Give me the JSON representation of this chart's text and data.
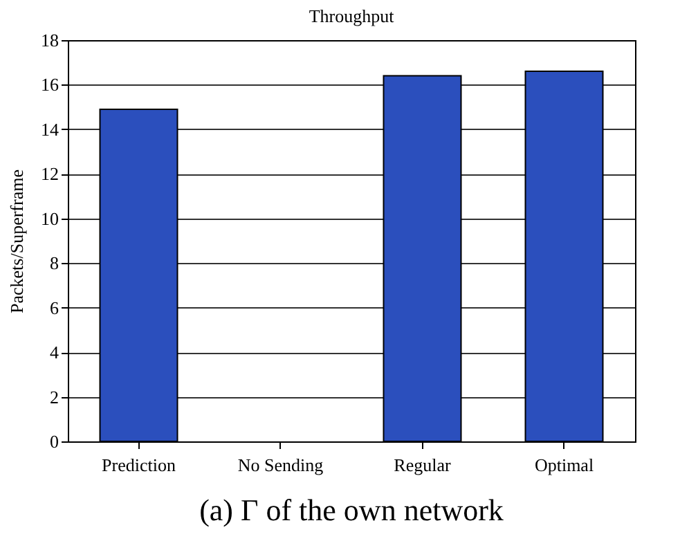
{
  "chart_data": {
    "type": "bar",
    "title": "Throughput",
    "ylabel": "Packets/Superframe",
    "categories": [
      "Prediction",
      "No Sending",
      "Regular",
      "Optimal"
    ],
    "values": [
      14.9,
      0,
      16.4,
      16.6
    ],
    "color": "#2b4fbd",
    "ylim": [
      0,
      18
    ],
    "yticks": [
      0,
      2,
      4,
      6,
      8,
      10,
      12,
      14,
      16,
      18
    ],
    "grid": "y",
    "annotations": [
      "(a) Γ of the own network"
    ]
  }
}
